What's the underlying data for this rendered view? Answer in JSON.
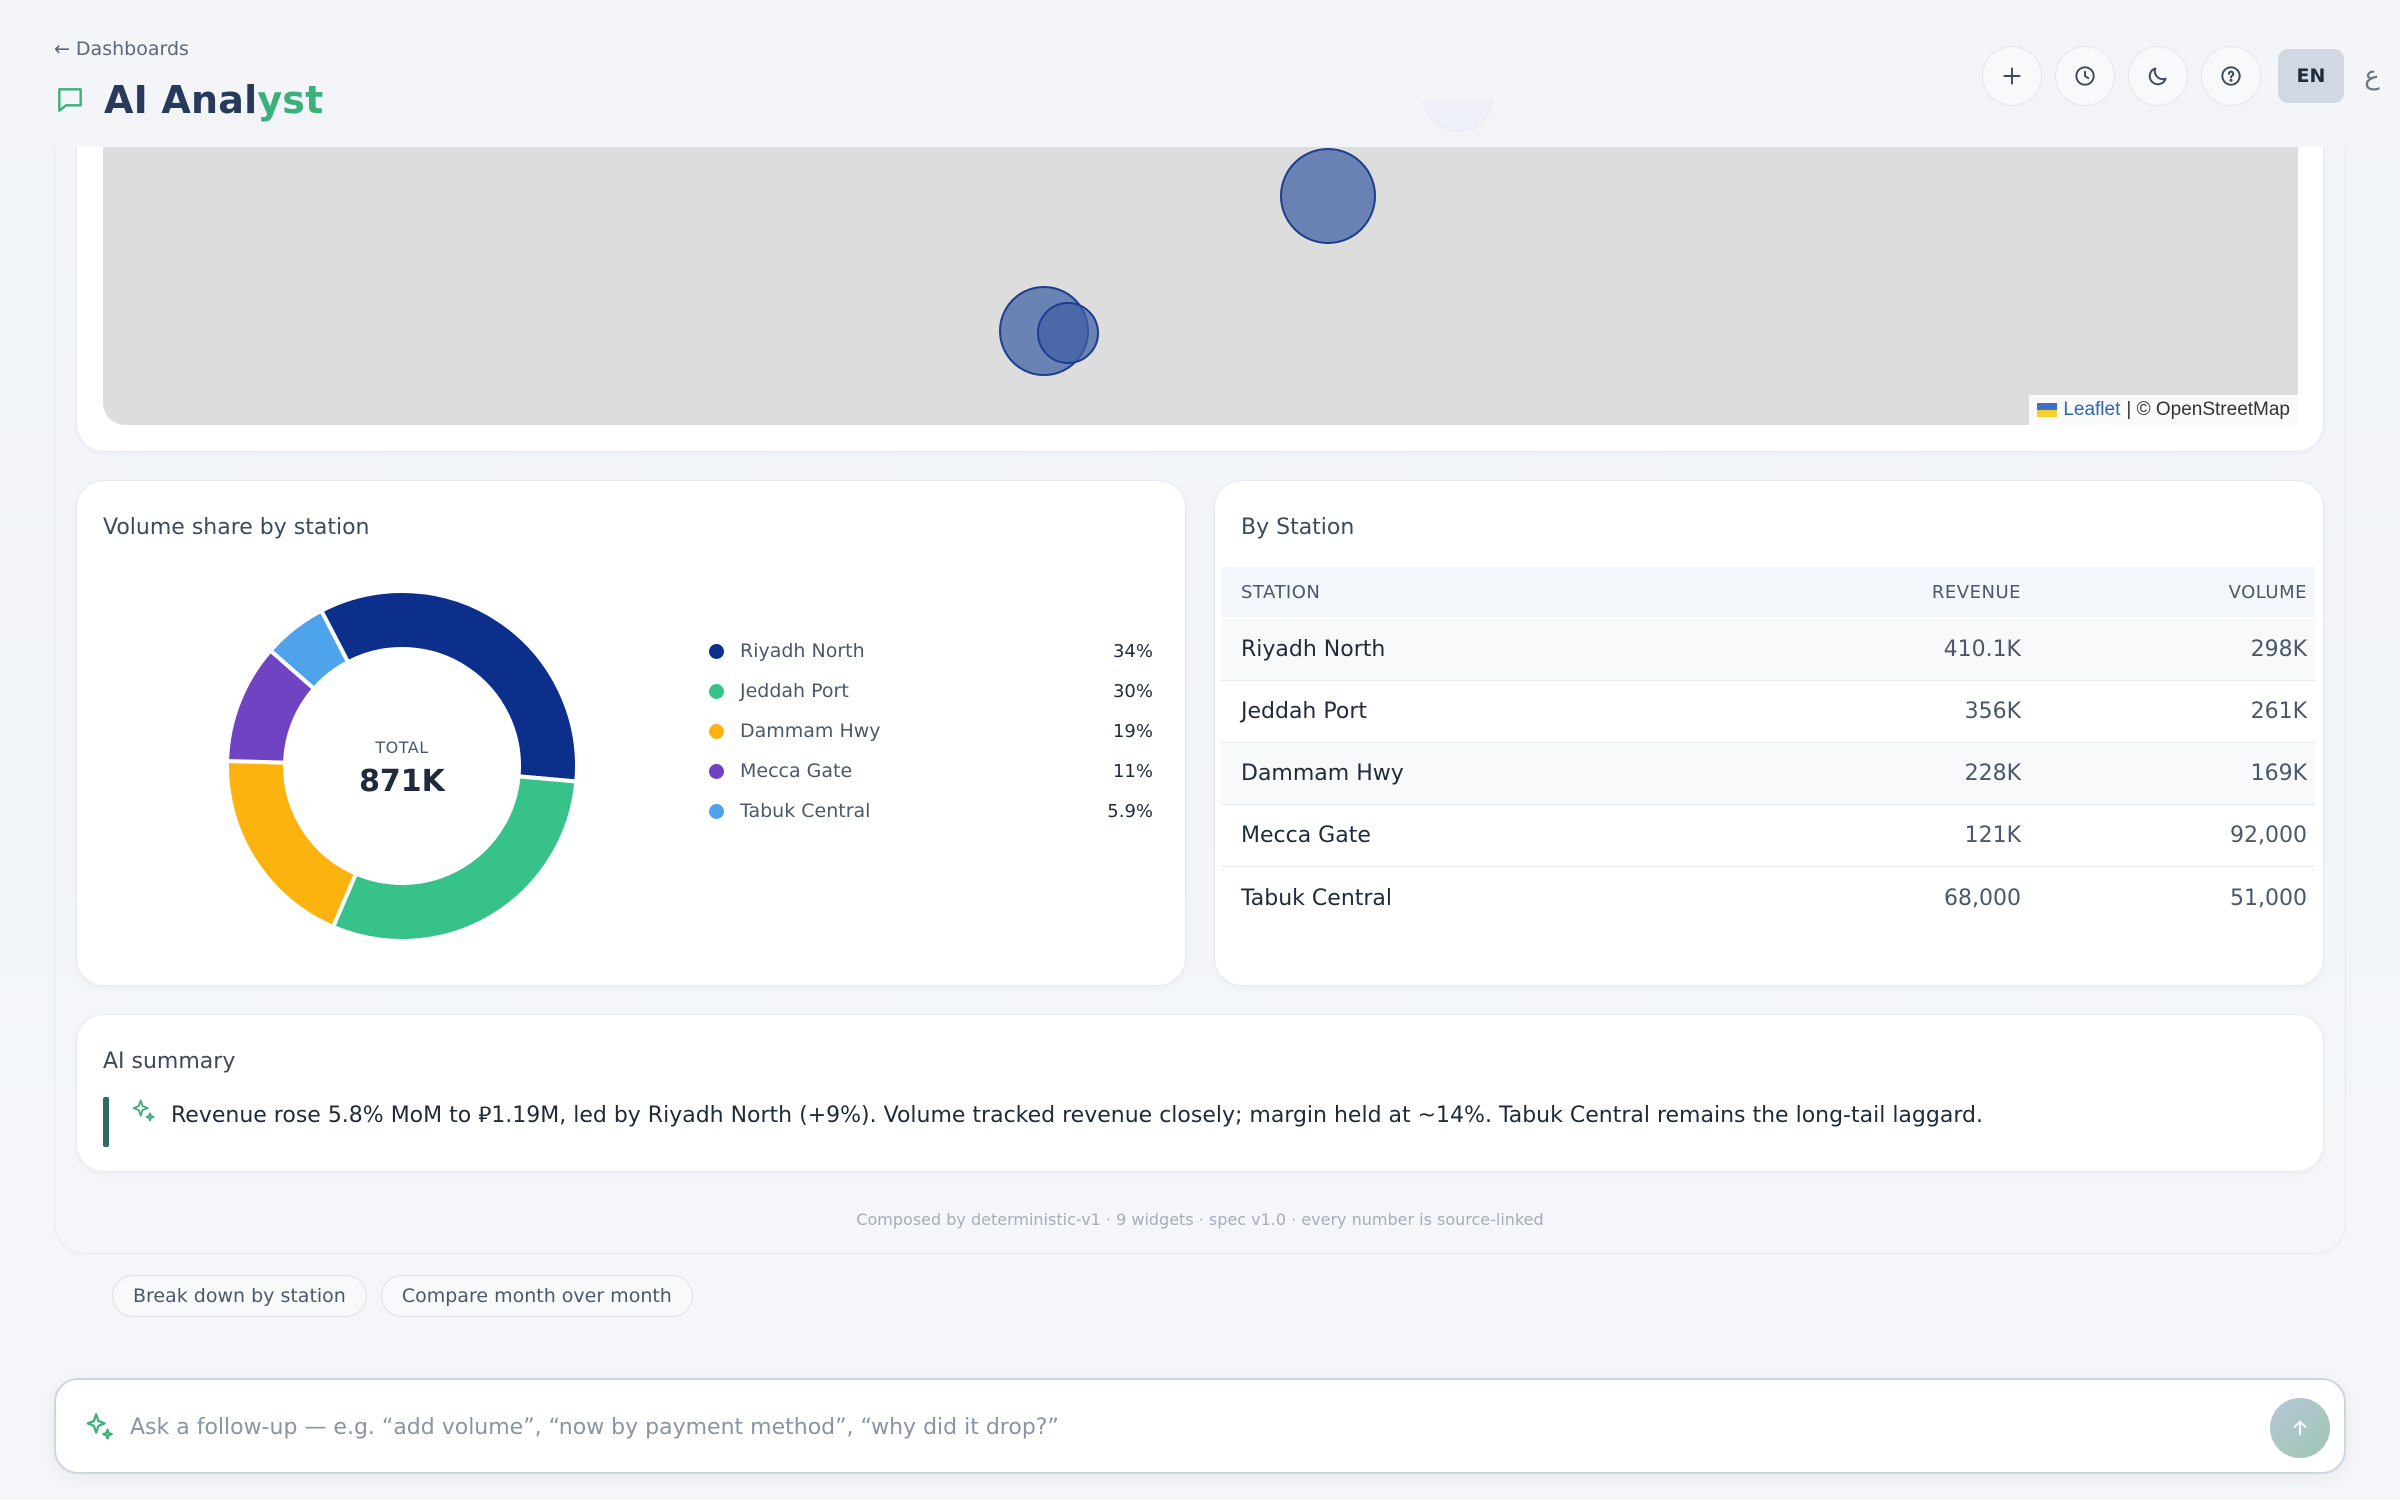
{
  "header": {
    "back_label": "Dashboards",
    "title_part1": "AI Anal",
    "title_part2": "yst",
    "lang": "EN",
    "lang_alt": "ع",
    "icons": [
      "plus-icon",
      "history-clock-icon",
      "moon-icon",
      "help-icon"
    ]
  },
  "map": {
    "attribution_link": "Leaflet",
    "attribution_text": "| © OpenStreetMap",
    "bubble_color": "#3e5ea4"
  },
  "donut": {
    "title": "Volume share by station",
    "total_label": "TOTAL",
    "total_value": "871K"
  },
  "chart_data": {
    "type": "pie",
    "title": "Volume share by station",
    "categories": [
      "Riyadh North",
      "Jeddah Port",
      "Dammam Hwy",
      "Mecca Gate",
      "Tabuk Central"
    ],
    "values": [
      34,
      30,
      19,
      11,
      5.9
    ],
    "value_labels": [
      "34%",
      "30%",
      "19%",
      "11%",
      "5.9%"
    ],
    "colors": [
      "#0b2f8a",
      "#37c28a",
      "#fcb30f",
      "#6f43c2",
      "#4fa3ea"
    ],
    "inner_label": "TOTAL",
    "inner_value": "871K",
    "legend_placement": "right"
  },
  "table": {
    "title": "By Station",
    "columns": [
      "STATION",
      "REVENUE",
      "VOLUME"
    ],
    "rows": [
      {
        "station": "Riyadh North",
        "revenue": "410.1K",
        "volume": "298K"
      },
      {
        "station": "Jeddah Port",
        "revenue": "356K",
        "volume": "261K"
      },
      {
        "station": "Dammam Hwy",
        "revenue": "228K",
        "volume": "169K"
      },
      {
        "station": "Mecca Gate",
        "revenue": "121K",
        "volume": "92,000"
      },
      {
        "station": "Tabuk Central",
        "revenue": "68,000",
        "volume": "51,000"
      }
    ]
  },
  "summary": {
    "title": "AI summary",
    "text": "Revenue rose 5.8% MoM to ⃁1.19M, led by Riyadh North (+9%). Volume tracked revenue closely; margin held at ~14%. Tabuk Central remains the long-tail laggard."
  },
  "footer_note": "Composed by deterministic-v1 · 9 widgets · spec v1.0 · every number is source-linked",
  "suggestions": [
    "Break down by station",
    "Compare month over month"
  ],
  "input": {
    "placeholder": "Ask a follow-up — e.g. “add volume”, “now by payment method”, “why did it drop?”"
  }
}
